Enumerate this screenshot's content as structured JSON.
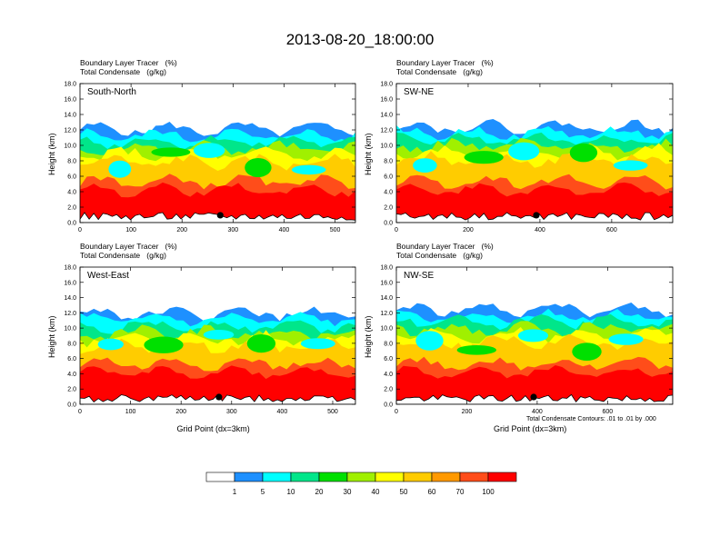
{
  "title": "2013-08-20_18:00:00",
  "colorbar": {
    "labels": [
      "1",
      "5",
      "10",
      "20",
      "30",
      "40",
      "50",
      "60",
      "70",
      "100"
    ],
    "colors": [
      "#ffffff",
      "#1e90ff",
      "#00ffff",
      "#00e68a",
      "#00e000",
      "#a0f000",
      "#ffff00",
      "#ffcc00",
      "#ff9900",
      "#ff4d1a",
      "#ff0000"
    ]
  },
  "chart_data": [
    {
      "type": "heatmap",
      "panel": "South-North",
      "subtitle_left": "Boundary Layer Tracer   (%)",
      "subtitle_left2": "Total Condensate   (g/kg)",
      "ylabel": "Height (km)",
      "xlabel": "",
      "xlim": [
        0,
        540
      ],
      "ylim": [
        0,
        18
      ],
      "xticks": [
        "0",
        "100",
        "200",
        "300",
        "400",
        "500"
      ],
      "yticks": [
        "0.0",
        "2.0",
        "4.0",
        "6.0",
        "8.0",
        "10.0",
        "12.0",
        "14.0",
        "16.0",
        "18.0"
      ],
      "marker_x": 275,
      "surface_top_km": 12.2,
      "cloud_top_km": 14.2
    },
    {
      "type": "heatmap",
      "panel": "SW-NE",
      "subtitle_left": "Boundary Layer Tracer   (%)",
      "subtitle_left2": "Total Condensate   (g/kg)",
      "ylabel": "Height (km)",
      "xlabel": "",
      "xlim": [
        0,
        770
      ],
      "ylim": [
        0,
        18
      ],
      "xticks": [
        "0",
        "200",
        "400",
        "600"
      ],
      "yticks": [
        "0.0",
        "2.0",
        "4.0",
        "6.0",
        "8.0",
        "10.0",
        "12.0",
        "14.0",
        "16.0",
        "18.0"
      ],
      "marker_x": 390,
      "surface_top_km": 12.5,
      "cloud_top_km": 16.5
    },
    {
      "type": "heatmap",
      "panel": "West-East",
      "subtitle_left": "Boundary Layer Tracer   (%)",
      "subtitle_left2": "Total Condensate   (g/kg)",
      "ylabel": "Height (km)",
      "xlabel": "Grid Point (dx=3km)",
      "xlim": [
        0,
        545
      ],
      "ylim": [
        0,
        18
      ],
      "xticks": [
        "0",
        "100",
        "200",
        "300",
        "400",
        "500"
      ],
      "yticks": [
        "0.0",
        "2.0",
        "4.0",
        "6.0",
        "8.0",
        "10.0",
        "12.0",
        "14.0",
        "16.0",
        "18.0"
      ],
      "marker_x": 275,
      "surface_top_km": 12.0,
      "cloud_top_km": 14.2
    },
    {
      "type": "heatmap",
      "panel": "NW-SE",
      "subtitle_left": "Boundary Layer Tracer   (%)",
      "subtitle_left2": "Total Condensate   (g/kg)",
      "ylabel": "Height (km)",
      "xlabel": "Grid Point (dx=3km)",
      "xlim": [
        0,
        785
      ],
      "ylim": [
        0,
        18
      ],
      "xticks": [
        "0",
        "200",
        "400",
        "600"
      ],
      "yticks": [
        "0.0",
        "2.0",
        "4.0",
        "6.0",
        "8.0",
        "10.0",
        "12.0",
        "14.0",
        "16.0",
        "18.0"
      ],
      "marker_x": 390,
      "surface_top_km": 12.5,
      "cloud_top_km": 15.5
    }
  ],
  "contour_note": "Total Condensate Contours: .01 to .01 by .000"
}
